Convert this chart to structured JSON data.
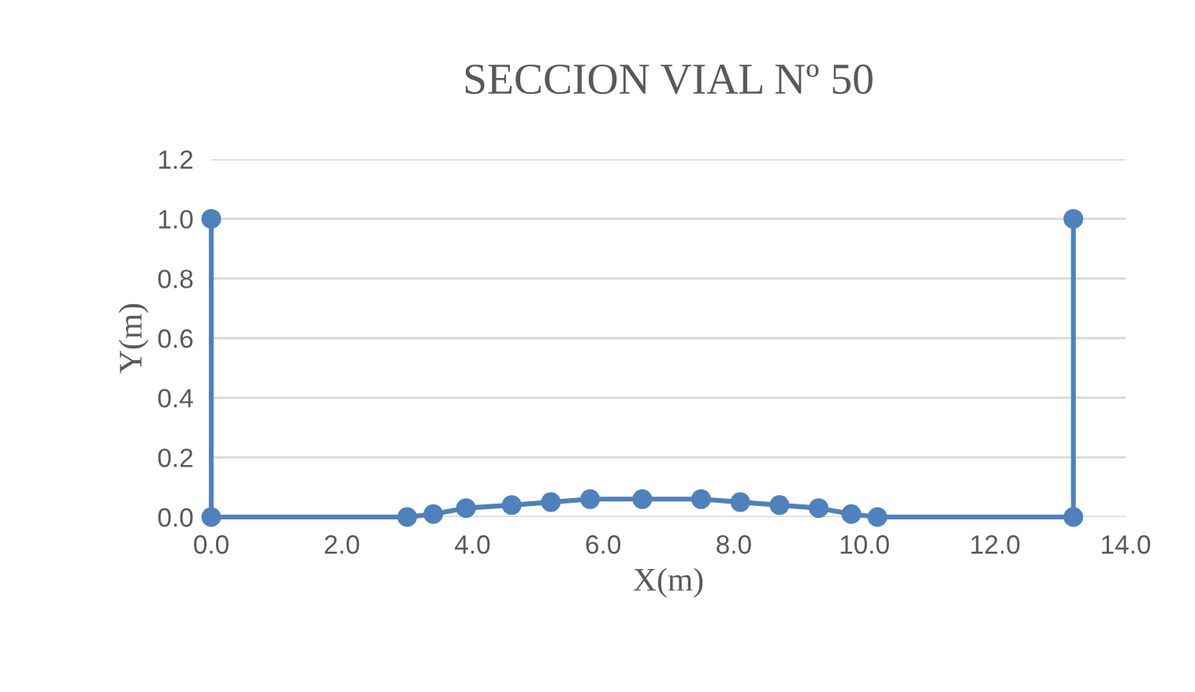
{
  "chart_data": {
    "type": "line",
    "title": "SECCION VIAL Nº 50",
    "xlabel": "X(m)",
    "ylabel": "Y(m)",
    "x": [
      0,
      0,
      3.0,
      3.4,
      3.9,
      4.6,
      5.2,
      5.8,
      6.6,
      7.5,
      8.1,
      8.7,
      9.3,
      9.8,
      10.2,
      13.2,
      13.2
    ],
    "series": [
      {
        "color": "#4f81bd",
        "values": [
          1.0,
          0,
          0,
          0.01,
          0.03,
          0.04,
          0.05,
          0.06,
          0.06,
          0.06,
          0.05,
          0.04,
          0.03,
          0.01,
          0,
          0,
          1.0
        ]
      }
    ],
    "xlim": [
      0,
      14
    ],
    "xticks": [
      {
        "value": 0,
        "label": "0.0"
      },
      {
        "value": 2,
        "label": "2.0"
      },
      {
        "value": 4,
        "label": "4.0"
      },
      {
        "value": 6,
        "label": "6.0"
      },
      {
        "value": 8,
        "label": "8.0"
      },
      {
        "value": 10,
        "label": "10.0"
      },
      {
        "value": 12,
        "label": "12.0"
      },
      {
        "value": 14,
        "label": "14.0"
      }
    ],
    "ylim": [
      0,
      1.2
    ],
    "yticks": [
      {
        "value": 0,
        "label": "0.0"
      },
      {
        "value": 0.2,
        "label": "0.2"
      },
      {
        "value": 0.4,
        "label": "0.4"
      },
      {
        "value": 0.6,
        "label": "0.6"
      },
      {
        "value": 0.8,
        "label": "0.8"
      },
      {
        "value": 1.0,
        "label": "1.0"
      },
      {
        "value": 1.2,
        "label": "1.2"
      }
    ],
    "grid": "y",
    "marker": "circle",
    "line_style": "solid",
    "legend": false
  }
}
